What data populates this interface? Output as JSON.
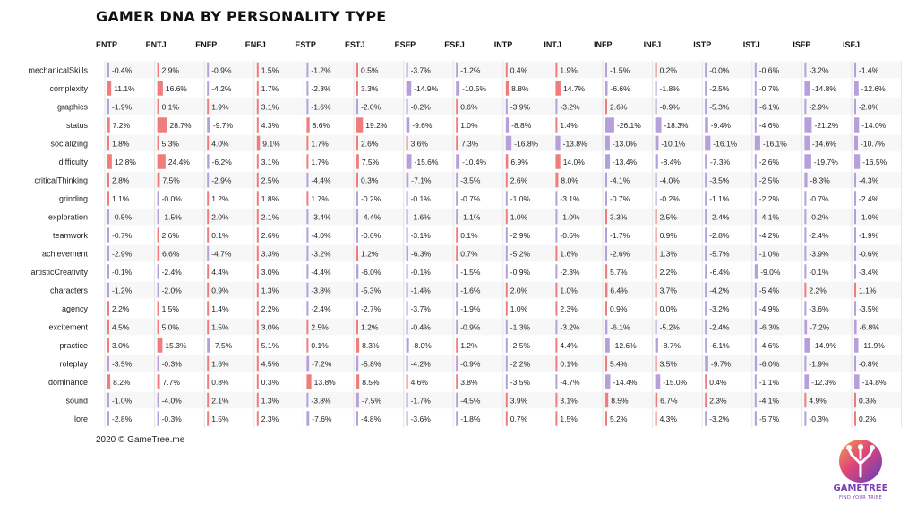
{
  "title": "GAMER DNA BY PERSONALITY TYPE",
  "footer": "2020 © GameTree.me",
  "logo": {
    "name": "GAMETREE",
    "tagline": "FIND YOUR TRIBE"
  },
  "colors": {
    "positive": "#f07d7d",
    "negative": "#b5a0db",
    "grid": "#e6e6e6",
    "row_band": "#f7f7f7"
  },
  "chart_data": {
    "type": "table",
    "unit": "%",
    "columns": [
      "ENTP",
      "ENTJ",
      "ENFP",
      "ENFJ",
      "ESTP",
      "ESTJ",
      "ESFP",
      "ESFJ",
      "INTP",
      "INTJ",
      "INFP",
      "INFJ",
      "ISTP",
      "ISTJ",
      "ISFP",
      "ISFJ"
    ],
    "rows": [
      {
        "label": "mechanicalSkills",
        "values": [
          "-0.4",
          "2.9",
          "-0.9",
          "1.5",
          "-1.2",
          "0.5",
          "-3.7",
          "-1.2",
          "0.4",
          "1.9",
          "-1.5",
          "0.2",
          "-0.0",
          "-0.6",
          "-3.2",
          "-1.4"
        ]
      },
      {
        "label": "complexity",
        "values": [
          "11.1",
          "16.6",
          "-4.2",
          "1.7",
          "-2.3",
          "3.3",
          "-14.9",
          "-10.5",
          "8.8",
          "14.7",
          "-6.6",
          "-1.8",
          "-2.5",
          "-0.7",
          "-14.8",
          "-12.6"
        ]
      },
      {
        "label": "graphics",
        "values": [
          "-1.9",
          "0.1",
          "1.9",
          "3.1",
          "-1.6",
          "-2.0",
          "-0.2",
          "0.6",
          "-3.9",
          "-3.2",
          "2.6",
          "-0.9",
          "-5.3",
          "-6.1",
          "-2.9",
          "-2.0"
        ]
      },
      {
        "label": "status",
        "values": [
          "7.2",
          "28.7",
          "-9.7",
          "4.3",
          "8.6",
          "19.2",
          "-9.6",
          "1.0",
          "-8.8",
          "1.4",
          "-26.1",
          "-18.3",
          "-9.4",
          "-4.6",
          "-21.2",
          "-14.0"
        ]
      },
      {
        "label": "socializing",
        "values": [
          "1.8",
          "5.3",
          "4.0",
          "9.1",
          "1.7",
          "2.6",
          "3.6",
          "7.3",
          "-16.8",
          "-13.8",
          "-13.0",
          "-10.1",
          "-16.1",
          "-16.1",
          "-14.6",
          "-10.7"
        ]
      },
      {
        "label": "difficulty",
        "values": [
          "12.8",
          "24.4",
          "-6.2",
          "3.1",
          "1.7",
          "7.5",
          "-15.6",
          "-10.4",
          "6.9",
          "14.0",
          "-13.4",
          "-8.4",
          "-7.3",
          "-2.6",
          "-19.7",
          "-16.5"
        ]
      },
      {
        "label": "criticalThinking",
        "values": [
          "2.8",
          "7.5",
          "-2.9",
          "2.5",
          "-4.4",
          "0.3",
          "-7.1",
          "-3.5",
          "2.6",
          "8.0",
          "-4.1",
          "-4.0",
          "-3.5",
          "-2.5",
          "-8.3",
          "-4.3"
        ]
      },
      {
        "label": "grinding",
        "values": [
          "1.1",
          "-0.0",
          "1.2",
          "1.8",
          "1.7",
          "-0.2",
          "-0.1",
          "-0.7",
          "-1.0",
          "-3.1",
          "-0.7",
          "-0.2",
          "-1.1",
          "-2.2",
          "-0.7",
          "-2.4"
        ]
      },
      {
        "label": "exploration",
        "values": [
          "-0.5",
          "-1.5",
          "2.0",
          "2.1",
          "-3.4",
          "-4.4",
          "-1.6",
          "-1.1",
          "1.0",
          "-1.0",
          "3.3",
          "2.5",
          "-2.4",
          "-4.1",
          "-0.2",
          "-1.0"
        ]
      },
      {
        "label": "teamwork",
        "values": [
          "-0.7",
          "2.6",
          "0.1",
          "2.6",
          "-4.0",
          "-0.6",
          "-3.1",
          "0.1",
          "-2.9",
          "-0.6",
          "-1.7",
          "0.9",
          "-2.8",
          "-4.2",
          "-2.4",
          "-1.9"
        ]
      },
      {
        "label": "achievement",
        "values": [
          "-2.9",
          "6.6",
          "-4.7",
          "3.3",
          "-3.2",
          "1.2",
          "-6.3",
          "0.7",
          "-5.2",
          "1.6",
          "-2.6",
          "1.3",
          "-5.7",
          "-1.0",
          "-3.9",
          "-0.6"
        ]
      },
      {
        "label": "artisticCreativity",
        "values": [
          "-0.1",
          "-2.4",
          "4.4",
          "3.0",
          "-4.4",
          "-6.0",
          "-0.1",
          "-1.5",
          "-0.9",
          "-2.3",
          "5.7",
          "2.2",
          "-6.4",
          "-9.0",
          "-0.1",
          "-3.4"
        ]
      },
      {
        "label": "characters",
        "values": [
          "-1.2",
          "-2.0",
          "0.9",
          "1.3",
          "-3.8",
          "-5.3",
          "-1.4",
          "-1.6",
          "2.0",
          "1.0",
          "6.4",
          "3.7",
          "-4.2",
          "-5.4",
          "2.2",
          "1.1"
        ]
      },
      {
        "label": "agency",
        "values": [
          "2.2",
          "1.5",
          "1.4",
          "2.2",
          "-2.4",
          "-2.7",
          "-3.7",
          "-1.9",
          "1.0",
          "2.3",
          "0.9",
          "0.0",
          "-3.2",
          "-4.9",
          "-3.6",
          "-3.5"
        ]
      },
      {
        "label": "excitement",
        "values": [
          "4.5",
          "5.0",
          "1.5",
          "3.0",
          "2.5",
          "1.2",
          "-0.4",
          "-0.9",
          "-1.3",
          "-3.2",
          "-6.1",
          "-5.2",
          "-2.4",
          "-6.3",
          "-7.2",
          "-6.8"
        ]
      },
      {
        "label": "practice",
        "values": [
          "3.0",
          "15.3",
          "-7.5",
          "5.1",
          "0.1",
          "8.3",
          "-8.0",
          "1.2",
          "-2.5",
          "4.4",
          "-12.6",
          "-8.7",
          "-6.1",
          "-4.6",
          "-14.9",
          "-11.9"
        ]
      },
      {
        "label": "roleplay",
        "values": [
          "-3.5",
          "-0.3",
          "1.6",
          "4.5",
          "-7.2",
          "-5.8",
          "-4.2",
          "-0.9",
          "-2.2",
          "0.1",
          "5.4",
          "3.5",
          "-9.7",
          "-6.0",
          "-1.9",
          "-0.8"
        ]
      },
      {
        "label": "dominance",
        "values": [
          "8.2",
          "7.7",
          "0.8",
          "0.3",
          "13.8",
          "8.5",
          "4.6",
          "3.8",
          "-3.5",
          "-4.7",
          "-14.4",
          "-15.0",
          "0.4",
          "-1.1",
          "-12.3",
          "-14.8"
        ]
      },
      {
        "label": "sound",
        "values": [
          "-1.0",
          "-4.0",
          "2.1",
          "1.3",
          "-3.8",
          "-7.5",
          "-1.7",
          "-4.5",
          "3.9",
          "3.1",
          "8.5",
          "6.7",
          "2.3",
          "-4.1",
          "4.9",
          "0.3"
        ]
      },
      {
        "label": "lore",
        "values": [
          "-2.8",
          "-0.3",
          "1.5",
          "2.3",
          "-7.6",
          "-4.8",
          "-3.6",
          "-1.8",
          "0.7",
          "1.5",
          "5.2",
          "4.3",
          "-3.2",
          "-5.7",
          "-0.3",
          "0.2"
        ]
      }
    ]
  }
}
